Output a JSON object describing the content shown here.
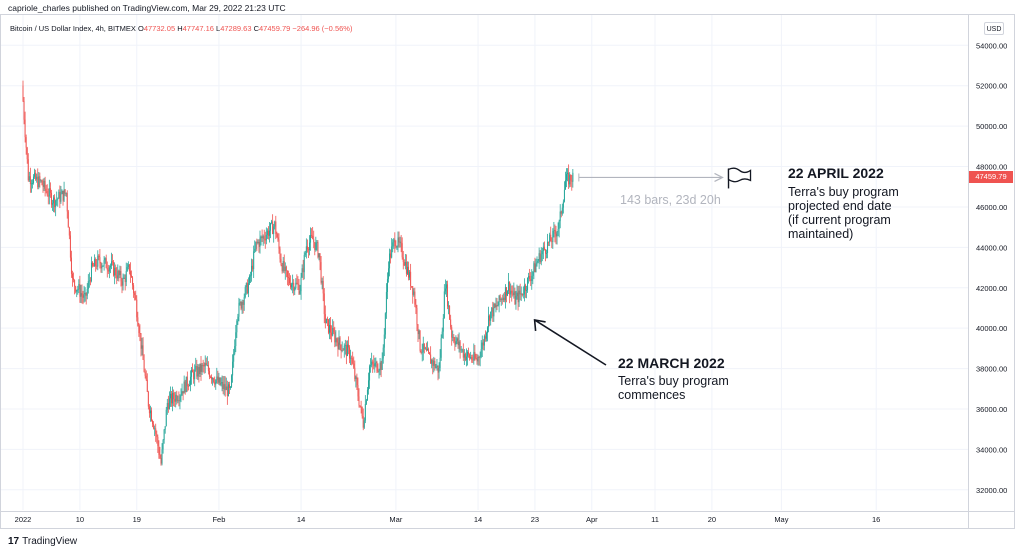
{
  "header": "capriole_charles published on TradingView.com, Mar 29, 2022 21:23 UTC",
  "legend": {
    "symbol": "Bitcoin / US Dollar Index, 4h, BITMEX",
    "open_label": "O",
    "open": "47732.05",
    "high_label": "H",
    "high": "47747.16",
    "low_label": "L",
    "low": "47289.63",
    "close_label": "C",
    "close": "47459.79",
    "change": "−264.96 (−0.56%)"
  },
  "currency": "USD",
  "current_price": "47459.79",
  "footer": {
    "logo_mark": "17",
    "brand": "TradingView"
  },
  "annotations": {
    "end": {
      "title": "22 APRIL 2022",
      "lines": [
        "Terra's buy program",
        "projected end date",
        "(if current program",
        "maintained)"
      ]
    },
    "start": {
      "title": "22 MARCH 2022",
      "lines": [
        "Terra's buy program",
        "commences"
      ]
    },
    "range": "143 bars, 23d 20h"
  },
  "colors": {
    "up": "#26a69a",
    "down": "#ef5350",
    "grid": "#f0f3fa",
    "annotation_line": "#b2b5be"
  },
  "chart_data": {
    "type": "candlestick",
    "title": "",
    "interval": "4h",
    "ylim": [
      31000,
      55500
    ],
    "y_ticks": [
      "32000.00",
      "34000.00",
      "36000.00",
      "38000.00",
      "40000.00",
      "42000.00",
      "44000.00",
      "46000.00",
      "48000.00",
      "50000.00",
      "52000.00",
      "54000.00"
    ],
    "x_ticks": [
      "2022",
      "10",
      "19",
      "Feb",
      "14",
      "Mar",
      "14",
      "23",
      "Apr",
      "11",
      "20",
      "May",
      "16"
    ],
    "x_tick_dates": [
      "2022-01-01",
      "2022-01-10",
      "2022-01-19",
      "2022-02-01",
      "2022-02-14",
      "2022-03-01",
      "2022-03-14",
      "2022-03-23",
      "2022-04-01",
      "2022-04-11",
      "2022-04-20",
      "2022-05-01",
      "2022-05-16"
    ],
    "grid": true,
    "series": [
      {
        "name": "",
        "points": [
          [
            "2022-01-01",
            52000
          ],
          [
            "2022-01-02",
            47500
          ],
          [
            "2022-01-04",
            47200
          ],
          [
            "2022-01-06",
            46300
          ],
          [
            "2022-01-08",
            46700
          ],
          [
            "2022-01-09",
            42300
          ],
          [
            "2022-01-10",
            41900
          ],
          [
            "2022-01-11",
            41400
          ],
          [
            "2022-01-12",
            42900
          ],
          [
            "2022-01-13",
            43300
          ],
          [
            "2022-01-15",
            43100
          ],
          [
            "2022-01-17",
            42300
          ],
          [
            "2022-01-18",
            43000
          ],
          [
            "2022-01-19",
            41300
          ],
          [
            "2022-01-20",
            38800
          ],
          [
            "2022-01-21",
            36300
          ],
          [
            "2022-01-22",
            35100
          ],
          [
            "2022-01-23",
            33300
          ],
          [
            "2022-01-24",
            36300
          ],
          [
            "2022-01-26",
            36800
          ],
          [
            "2022-01-28",
            37700
          ],
          [
            "2022-01-30",
            38100
          ],
          [
            "2022-02-01",
            37300
          ],
          [
            "2022-02-03",
            36800
          ],
          [
            "2022-02-04",
            40700
          ],
          [
            "2022-02-06",
            42300
          ],
          [
            "2022-02-07",
            44100
          ],
          [
            "2022-02-09",
            44800
          ],
          [
            "2022-02-10",
            45100
          ],
          [
            "2022-02-11",
            43300
          ],
          [
            "2022-02-12",
            42400
          ],
          [
            "2022-02-14",
            42000
          ],
          [
            "2022-02-15",
            44100
          ],
          [
            "2022-02-16",
            44400
          ],
          [
            "2022-02-17",
            43700
          ],
          [
            "2022-02-18",
            40300
          ],
          [
            "2022-02-20",
            39300
          ],
          [
            "2022-02-22",
            38700
          ],
          [
            "2022-02-24",
            35300
          ],
          [
            "2022-02-25",
            38100
          ],
          [
            "2022-02-27",
            38200
          ],
          [
            "2022-02-28",
            43300
          ],
          [
            "2022-03-01",
            44400
          ],
          [
            "2022-03-02",
            43900
          ],
          [
            "2022-03-04",
            41800
          ],
          [
            "2022-03-05",
            39100
          ],
          [
            "2022-03-07",
            38300
          ],
          [
            "2022-03-08",
            37900
          ],
          [
            "2022-03-09",
            42300
          ],
          [
            "2022-03-10",
            39700
          ],
          [
            "2022-03-12",
            38700
          ],
          [
            "2022-03-14",
            38400
          ],
          [
            "2022-03-15",
            39300
          ],
          [
            "2022-03-16",
            40700
          ],
          [
            "2022-03-17",
            41000
          ],
          [
            "2022-03-19",
            42100
          ],
          [
            "2022-03-20",
            41400
          ],
          [
            "2022-03-21",
            41700
          ],
          [
            "2022-03-22",
            42300
          ],
          [
            "2022-03-23",
            42900
          ],
          [
            "2022-03-24",
            43600
          ],
          [
            "2022-03-26",
            44500
          ],
          [
            "2022-03-27",
            45100
          ],
          [
            "2022-03-28",
            47300
          ],
          [
            "2022-03-29",
            47460
          ]
        ]
      }
    ],
    "projection": {
      "from": "2022-03-29",
      "to": "2022-04-22",
      "price": 47460
    },
    "marker_start": {
      "date": "2022-03-22",
      "price": 41000
    }
  }
}
